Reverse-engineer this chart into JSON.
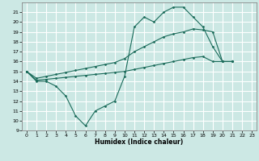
{
  "title": "",
  "xlabel": "Humidex (Indice chaleur)",
  "ylabel": "",
  "bg_color": "#cce8e4",
  "grid_color": "#ffffff",
  "line_color": "#1a6b5a",
  "x": [
    0,
    1,
    2,
    3,
    4,
    5,
    6,
    7,
    8,
    9,
    10,
    11,
    12,
    13,
    14,
    15,
    16,
    17,
    18,
    19,
    20,
    21,
    22,
    23
  ],
  "line1": [
    15,
    14,
    14,
    13.5,
    12.5,
    10.5,
    9.5,
    11,
    11.5,
    12,
    14.5,
    19.5,
    20.5,
    20,
    21,
    21.5,
    21.5,
    20.5,
    19.5,
    17.5,
    16,
    16,
    null,
    null
  ],
  "line2": [
    15,
    14.1,
    14.2,
    14.3,
    14.4,
    14.5,
    14.6,
    14.7,
    14.8,
    14.9,
    15.0,
    15.2,
    15.4,
    15.6,
    15.8,
    16.0,
    16.2,
    16.4,
    16.5,
    16.0,
    16.0,
    16.0,
    null,
    null
  ],
  "line3": [
    15,
    14.3,
    14.5,
    14.7,
    14.9,
    15.1,
    15.3,
    15.5,
    15.7,
    15.9,
    16.3,
    17.0,
    17.5,
    18.0,
    18.5,
    18.8,
    19.0,
    19.3,
    19.2,
    19.0,
    16.0,
    16.0,
    null,
    null
  ],
  "ylim": [
    9,
    22
  ],
  "xlim": [
    -0.5,
    23.5
  ],
  "yticks": [
    9,
    10,
    11,
    12,
    13,
    14,
    15,
    16,
    17,
    18,
    19,
    20,
    21
  ],
  "xticks": [
    0,
    1,
    2,
    3,
    4,
    5,
    6,
    7,
    8,
    9,
    10,
    11,
    12,
    13,
    14,
    15,
    16,
    17,
    18,
    19,
    20,
    21,
    22,
    23
  ]
}
